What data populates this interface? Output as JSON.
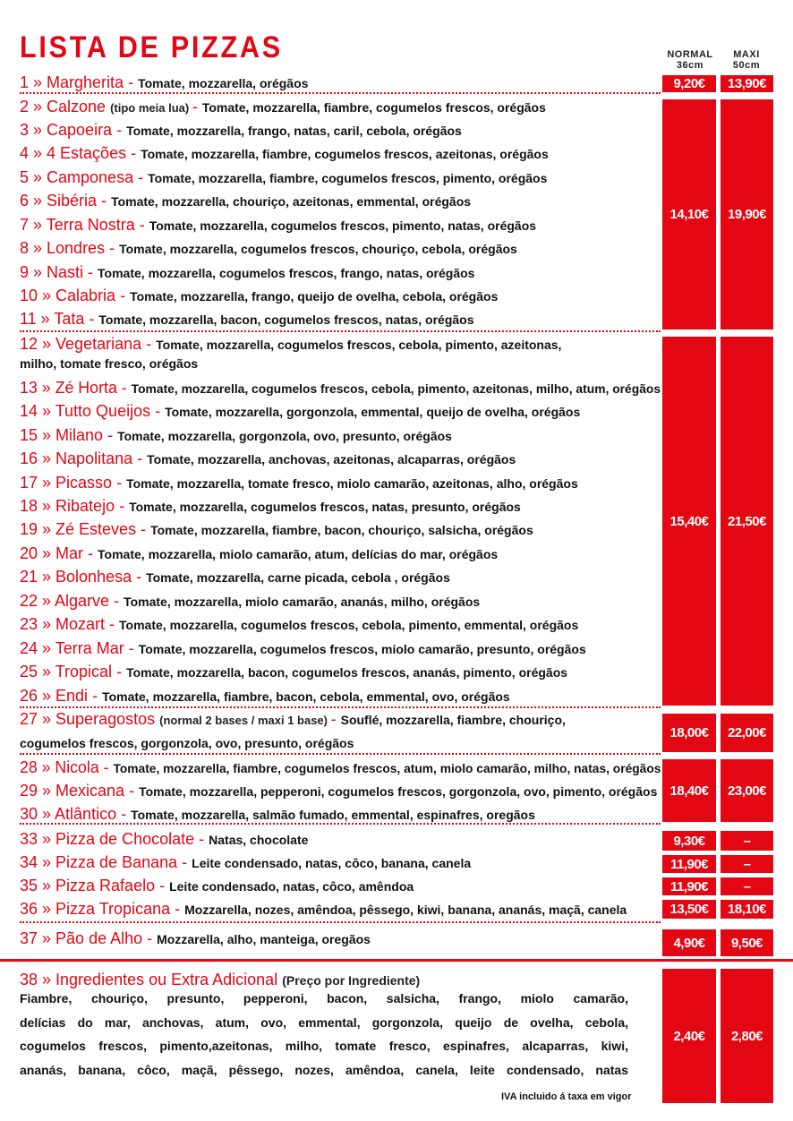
{
  "title": "LISTA DE PIZZAS",
  "columns": [
    {
      "label": "NORMAL",
      "size": "36cm"
    },
    {
      "label": "MAXI",
      "size": "50cm"
    }
  ],
  "items": [
    {
      "num": "1",
      "name": "Margherita",
      "desc": "Tomate, mozzarella, orégãos"
    },
    {
      "num": "2",
      "name": "Calzone",
      "note": "(tipo meia lua)",
      "desc": "Tomate, mozzarella, fiambre, cogumelos frescos, orégãos"
    },
    {
      "num": "3",
      "name": "Capoeira",
      "desc": "Tomate, mozzarella, frango, natas, caril, cebola, orégãos"
    },
    {
      "num": "4",
      "name": "4 Estações",
      "desc": "Tomate, mozzarella, fiambre, cogumelos frescos, azeitonas, orégãos"
    },
    {
      "num": "5",
      "name": "Camponesa",
      "desc": "Tomate, mozzarella, fiambre, cogumelos frescos, pimento, orégãos"
    },
    {
      "num": "6",
      "name": "Sibéria",
      "desc": "Tomate, mozzarella, chouriço, azeitonas, emmental, orégãos"
    },
    {
      "num": "7",
      "name": "Terra Nostra",
      "desc": "Tomate, mozzarella, cogumelos frescos, pimento, natas, orégãos"
    },
    {
      "num": "8",
      "name": "Londres",
      "desc": "Tomate, mozzarella, cogumelos frescos, chouriço, cebola, orégãos"
    },
    {
      "num": "9",
      "name": "Nasti",
      "desc": "Tomate, mozzarella, cogumelos frescos, frango, natas, orégãos"
    },
    {
      "num": "10",
      "name": "Calabria",
      "desc": "Tomate, mozzarella, frango, queijo de ovelha, cebola, orégãos"
    },
    {
      "num": "11",
      "name": "Tata",
      "desc": "Tomate, mozzarella, bacon, cogumelos frescos, natas, orégãos"
    },
    {
      "num": "12",
      "name": "Vegetariana",
      "desc": "Tomate, mozzarella, cogumelos frescos, cebola, pimento, azeitonas,",
      "desc2": "milho, tomate fresco, orégãos"
    },
    {
      "num": "13",
      "name": "Zé Horta",
      "desc": "Tomate, mozzarella, cogumelos frescos, cebola, pimento, azeitonas, milho, atum, orégãos"
    },
    {
      "num": "14",
      "name": "Tutto Queijos",
      "desc": "Tomate, mozzarella, gorgonzola, emmental, queijo de ovelha, orégãos"
    },
    {
      "num": "15",
      "name": "Milano",
      "desc": "Tomate, mozzarella, gorgonzola, ovo, presunto, orégãos"
    },
    {
      "num": "16",
      "name": "Napolitana",
      "desc": "Tomate, mozzarella, anchovas, azeitonas, alcaparras, orégãos"
    },
    {
      "num": "17",
      "name": "Picasso",
      "desc": "Tomate, mozzarella, tomate fresco, miolo camarão, azeitonas, alho, orégãos"
    },
    {
      "num": "18",
      "name": "Ribatejo",
      "desc": "Tomate, mozzarella, cogumelos frescos, natas, presunto, orégãos"
    },
    {
      "num": "19",
      "name": "Zé Esteves",
      "desc": "Tomate, mozzarella, fiambre, bacon, chouriço, salsicha, orégãos"
    },
    {
      "num": "20",
      "name": "Mar",
      "desc": "Tomate, mozzarella, miolo camarão, atum, delícias do mar, orégãos"
    },
    {
      "num": "21",
      "name": "Bolonhesa",
      "desc": "Tomate, mozzarella, carne picada, cebola , orégãos"
    },
    {
      "num": "22",
      "name": "Algarve",
      "desc": "Tomate, mozzarella, miolo camarão, ananás, milho, orégãos"
    },
    {
      "num": "23",
      "name": "Mozart",
      "desc": "Tomate, mozzarella, cogumelos frescos, cebola, pimento, emmental, orégãos"
    },
    {
      "num": "24",
      "name": "Terra Mar",
      "desc": "Tomate, mozzarella, cogumelos frescos, miolo camarão, presunto, orégãos"
    },
    {
      "num": "25",
      "name": "Tropical",
      "desc": "Tomate, mozzarella, bacon, cogumelos frescos, ananás, pimento, orégãos"
    },
    {
      "num": "26",
      "name": "Endi",
      "desc": "Tomate, mozzarella, fiambre, bacon, cebola, emmental, ovo, orégãos"
    },
    {
      "num": "27",
      "name": "Superagostos",
      "note": "(normal 2 bases / maxi 1 base)",
      "desc": "Souflé, mozzarella, fiambre, chouriço,",
      "desc2": "cogumelos frescos, gorgonzola, ovo, presunto, orégãos"
    },
    {
      "num": "28",
      "name": "Nicola",
      "desc": "Tomate, mozzarella, fiambre, cogumelos frescos, atum, miolo camarão, milho, natas, orégãos"
    },
    {
      "num": "29",
      "name": "Mexicana",
      "desc": "Tomate, mozzarella, pepperoni, cogumelos frescos, gorgonzola, ovo, pimento, orégãos"
    },
    {
      "num": "30",
      "name": "Atlântico",
      "desc": "Tomate, mozzarella, salmão fumado, emmental, espinafres, oregãos"
    },
    {
      "num": "33",
      "name": "Pizza de Chocolate",
      "desc": "Natas, chocolate"
    },
    {
      "num": "34",
      "name": "Pizza de Banana",
      "desc": "Leite condensado, natas, côco, banana, canela"
    },
    {
      "num": "35",
      "name": "Pizza Rafaelo",
      "desc": "Leite condensado, natas, côco, amêndoa"
    },
    {
      "num": "36",
      "name": "Pizza Tropicana",
      "desc": "Mozzarella, nozes, amêndoa, pêssego, kiwi, banana, ananás, maçã, canela"
    },
    {
      "num": "37",
      "name": "Pão de Alho",
      "desc": "Mozzarella, alho, manteiga, oregãos"
    }
  ],
  "prices": [
    {
      "normal": "9,20€",
      "maxi": "13,90€"
    },
    {
      "normal": "14,10€",
      "maxi": "19,90€"
    },
    {
      "normal": "15,40€",
      "maxi": "21,50€"
    },
    {
      "normal": "18,00€",
      "maxi": "22,00€"
    },
    {
      "normal": "18,40€",
      "maxi": "23,00€"
    },
    {
      "normal": "9,30€",
      "maxi": "–"
    },
    {
      "normal": "11,90€",
      "maxi": "–"
    },
    {
      "normal": "11,90€",
      "maxi": "–"
    },
    {
      "normal": "13,50€",
      "maxi": "18,10€"
    },
    {
      "normal": "4,90€",
      "maxi": "9,50€"
    },
    {
      "normal": "2,40€",
      "maxi": "2,80€"
    }
  ],
  "extras": {
    "num": "38",
    "name": "Ingredientes ou Extra Adicional",
    "note": "(Preço por Ingrediente)",
    "lines": [
      "Fiambre, chouriço, presunto, pepperoni, bacon, salsicha, frango, miolo camarão,",
      "delícias do mar,  anchovas, atum, ovo,  emmental, gorgonzola, queijo de ovelha, cebola,",
      "cogumelos frescos, pimento,azeitonas, milho, tomate fresco, espinafres, alcaparras, kiwi,",
      "ananás, banana, côco, maçã, pêssego, nozes, amêndoa, canela, leite condensado, natas"
    ]
  },
  "footer": "IVA incluido á taxa em vigor",
  "colors": {
    "accent": "#e30613",
    "text": "#111111"
  }
}
